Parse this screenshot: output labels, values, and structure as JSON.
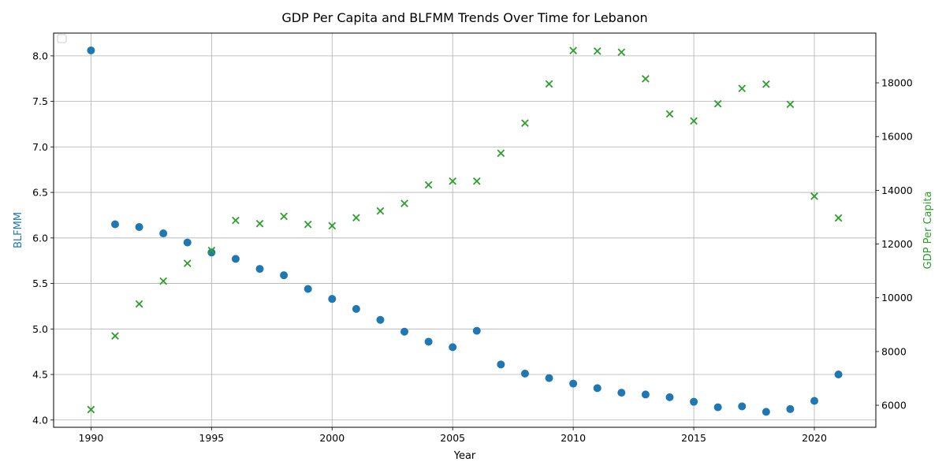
{
  "chart_data": {
    "type": "scatter",
    "title": "GDP Per Capita and BLFMM Trends Over Time for Lebanon",
    "xlabel": "Year",
    "ylabel_left": "BLFMM",
    "ylabel_right": "GDP Per Capita",
    "xlim": [
      1988.45,
      2022.55
    ],
    "ylim_left": [
      3.92,
      8.25
    ],
    "ylim_right": [
      5180,
      19850
    ],
    "x_ticks": [
      1990,
      1995,
      2000,
      2005,
      2010,
      2015,
      2020
    ],
    "y_ticks_left": [
      4.0,
      4.5,
      5.0,
      5.5,
      6.0,
      6.5,
      7.0,
      7.5,
      8.0
    ],
    "y_ticks_right": [
      6000,
      8000,
      10000,
      12000,
      14000,
      16000,
      18000
    ],
    "grid": true,
    "legend": {
      "placement": "top-left",
      "entries": []
    },
    "colors": {
      "blfmm": "#1f77b4",
      "gdp": "#2ca02c"
    },
    "x": [
      1990,
      1991,
      1992,
      1993,
      1994,
      1995,
      1996,
      1997,
      1998,
      1999,
      2000,
      2001,
      2002,
      2003,
      2004,
      2005,
      2006,
      2007,
      2008,
      2009,
      2010,
      2011,
      2012,
      2013,
      2014,
      2015,
      2016,
      2017,
      2018,
      2019,
      2020,
      2021
    ],
    "series": [
      {
        "axis": "left",
        "marker": "circle",
        "values": [
          8.06,
          6.15,
          6.12,
          6.05,
          5.95,
          5.84,
          5.77,
          5.66,
          5.59,
          5.44,
          5.33,
          5.22,
          5.1,
          4.97,
          4.86,
          4.8,
          4.98,
          4.61,
          4.51,
          4.46,
          4.4,
          4.35,
          4.3,
          4.28,
          4.25,
          4.2,
          4.14,
          4.15,
          4.09,
          4.12,
          4.21,
          4.5
        ]
      },
      {
        "axis": "right",
        "marker": "x",
        "values": [
          5840,
          8580,
          9770,
          10620,
          11280,
          11760,
          12880,
          12760,
          13030,
          12730,
          12680,
          12980,
          13230,
          13510,
          14200,
          14340,
          14340,
          15380,
          16500,
          17960,
          19200,
          19180,
          19140,
          18150,
          16840,
          16580,
          17220,
          17790,
          17950,
          17200,
          13780,
          12970
        ]
      }
    ]
  }
}
